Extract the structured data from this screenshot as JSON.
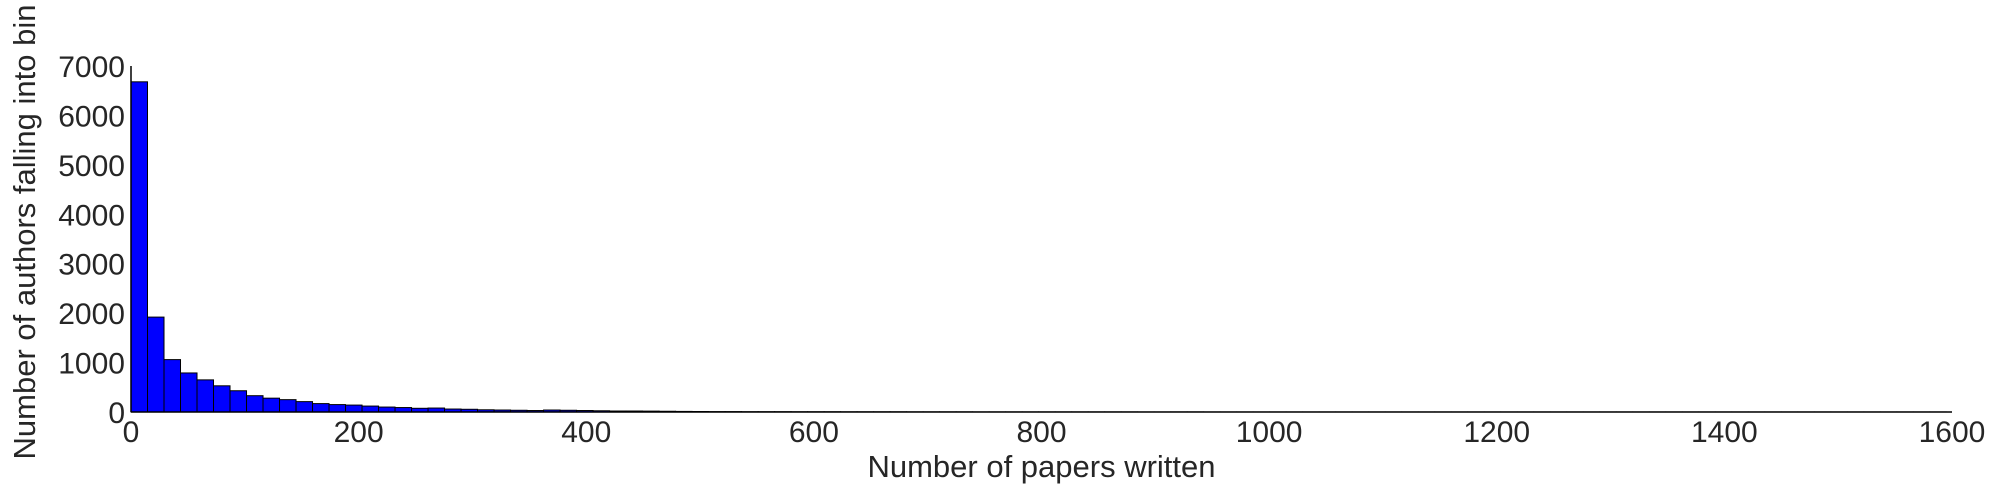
{
  "chart_data": {
    "type": "bar",
    "subtype": "histogram",
    "xlabel": "Number of papers written",
    "ylabel": "Number of authors falling into bin",
    "xlim": [
      0,
      1600
    ],
    "ylim": [
      0,
      7000
    ],
    "xticks": [
      "0",
      "200",
      "400",
      "600",
      "800",
      "1000",
      "1200",
      "1400",
      "1600"
    ],
    "yticks": [
      "0",
      "1000",
      "2000",
      "3000",
      "4000",
      "5000",
      "6000",
      "7000"
    ],
    "grid": false,
    "legend": "none",
    "bin_width": 14.5,
    "bar_color": "#0000ff",
    "edge_color": "#000000",
    "values": [
      6680,
      1920,
      1060,
      790,
      650,
      530,
      430,
      330,
      280,
      250,
      210,
      170,
      150,
      140,
      120,
      100,
      90,
      75,
      80,
      60,
      55,
      45,
      40,
      35,
      30,
      40,
      35,
      30,
      25,
      20,
      20,
      18,
      15,
      12,
      10,
      8,
      8,
      6,
      6,
      6,
      5,
      5,
      5,
      4,
      4,
      4,
      4,
      3,
      3,
      3,
      3,
      2,
      2,
      2,
      2,
      2,
      2,
      2,
      2,
      2,
      2,
      1,
      1,
      2,
      2,
      1,
      1,
      1,
      1,
      1,
      1,
      1,
      1,
      1,
      1,
      1,
      1,
      1,
      1,
      1,
      1,
      1,
      1,
      1,
      1,
      1,
      1,
      1,
      1,
      1,
      1,
      1,
      1,
      1,
      1,
      1,
      1,
      1,
      1,
      1,
      1,
      1,
      1,
      1,
      1,
      1,
      1,
      1,
      1,
      1
    ]
  }
}
